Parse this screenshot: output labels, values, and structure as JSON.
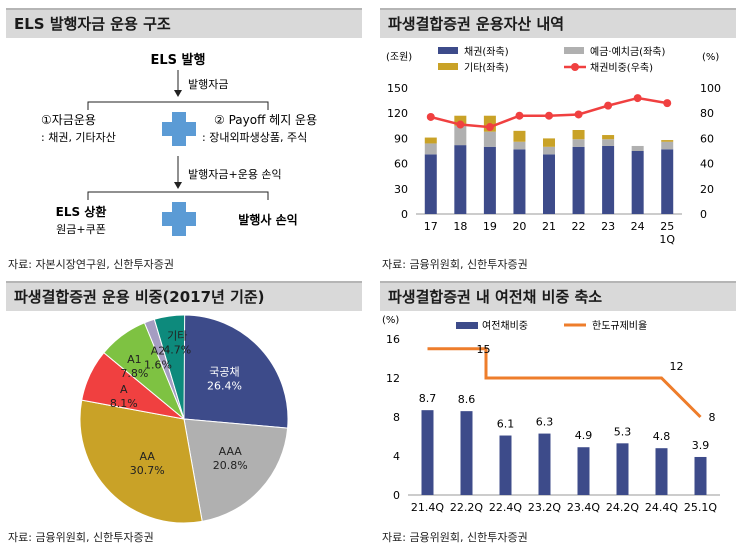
{
  "panels": {
    "structure": {
      "title": "ELS 발행자금 운용 구조",
      "source": "자료: 자본시장연구원, 신한투자증권",
      "top": "ELS 발행",
      "step1": "발행자금",
      "left_line1": "①자금운용",
      "left_line2": ": 채권, 기타자산",
      "right_line1": "② Payoff 헤지 운용",
      "right_line2": ": 장내외파생상품, 주식",
      "step2": "발행자금+운용 손익",
      "bottom_left1": "ELS 상환",
      "bottom_left2": "원금+쿠폰",
      "bottom_right": "발행사 손익"
    },
    "assets": {
      "title": "파생결합증권 운용자산 내역",
      "source": "자료: 금융위원회, 신한투자증권"
    },
    "pie": {
      "title": "파생결합증권 운용 비중(2017년 기준)",
      "source": "자료: 금융위원회, 신한투자증권"
    },
    "credit": {
      "title": "파생결합증권 내 여전채 비중 축소",
      "source": "자료: 금융위원회, 신한투자증권"
    }
  },
  "colors": {
    "navy": "#3d4b8a",
    "gray": "#b0b0b0",
    "gold": "#c9a227",
    "red": "#f04040",
    "orange": "#ee7d2b",
    "green": "#7ec242",
    "lavender": "#a59dc2",
    "teal": "#0d8a7c",
    "plus": "#5b9bd5"
  },
  "chart_data": [
    {
      "type": "bar",
      "title": "파생결합증권 운용자산 내역",
      "categories": [
        "17",
        "18",
        "19",
        "20",
        "21",
        "22",
        "23",
        "24",
        "25\n1Q"
      ],
      "y_left_unit": "(조원)",
      "y_right_unit": "(%)",
      "ylim": [
        0,
        150
      ],
      "y2lim": [
        0,
        100
      ],
      "yticks": [
        0,
        30,
        60,
        90,
        120,
        150
      ],
      "y2ticks": [
        0,
        20,
        40,
        60,
        80,
        100
      ],
      "stacked": true,
      "legend": [
        "채권(좌축)",
        "예금·예치금(좌축)",
        "기타(좌축)",
        "채권비중(우축)"
      ],
      "series": [
        {
          "name": "채권(좌축)",
          "values": [
            71,
            82,
            80,
            77,
            71,
            80,
            81,
            75,
            77
          ]
        },
        {
          "name": "예금·예치금(좌축)",
          "values": [
            13,
            23,
            18,
            9,
            9,
            9,
            8,
            6,
            9
          ]
        },
        {
          "name": "기타(좌축)",
          "values": [
            7,
            12,
            19,
            13,
            10,
            11,
            5,
            0,
            2
          ]
        },
        {
          "name": "채권비중(우축)",
          "axis": "right",
          "type": "line",
          "values": [
            77,
            71,
            69,
            78,
            78,
            79,
            86,
            92,
            88
          ]
        }
      ]
    },
    {
      "type": "pie",
      "title": "파생결합증권 운용 비중(2017년 기준)",
      "slices": [
        {
          "label": "국공채",
          "value": 26.4
        },
        {
          "label": "AAA",
          "value": 20.8
        },
        {
          "label": "AA",
          "value": 30.7
        },
        {
          "label": "A",
          "value": 8.1
        },
        {
          "label": "A1",
          "value": 7.8
        },
        {
          "label": "A2",
          "value": 1.6
        },
        {
          "label": "기타",
          "value": 4.7
        }
      ]
    },
    {
      "type": "bar",
      "title": "파생결합증권 내 여전채 비중 축소",
      "categories": [
        "21.4Q",
        "22.2Q",
        "22.4Q",
        "23.2Q",
        "23.4Q",
        "24.2Q",
        "24.4Q",
        "25.1Q"
      ],
      "y_unit": "(%)",
      "ylim": [
        0,
        16
      ],
      "yticks": [
        0,
        4,
        8,
        12,
        16
      ],
      "legend": [
        "여전채비중",
        "한도규제비율"
      ],
      "series": [
        {
          "name": "여전채비중",
          "type": "bar",
          "values": [
            8.7,
            8.6,
            6.1,
            6.3,
            4.9,
            5.3,
            4.8,
            3.9
          ]
        },
        {
          "name": "한도규제비율",
          "type": "line",
          "values": [
            15,
            15,
            12,
            12,
            12,
            12,
            12,
            8
          ],
          "labels": [
            "15",
            "12",
            "8"
          ]
        }
      ]
    }
  ]
}
